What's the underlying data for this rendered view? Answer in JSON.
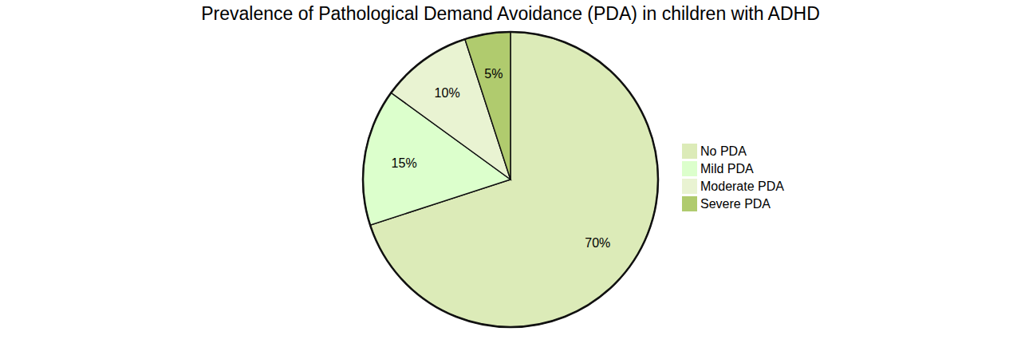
{
  "chart_data": {
    "type": "pie",
    "title": "Prevalence of Pathological Demand Avoidance (PDA) in children with ADHD",
    "categories": [
      "No PDA",
      "Mild PDA",
      "Moderate PDA",
      "Severe PDA"
    ],
    "values": [
      70,
      15,
      10,
      5
    ],
    "value_labels": [
      "70%",
      "15%",
      "10%",
      "5%"
    ],
    "colors": [
      "#dcebb8",
      "#dcffcc",
      "#e9f3d2",
      "#b0cb6e"
    ],
    "data_labels": true,
    "legend": "right"
  }
}
